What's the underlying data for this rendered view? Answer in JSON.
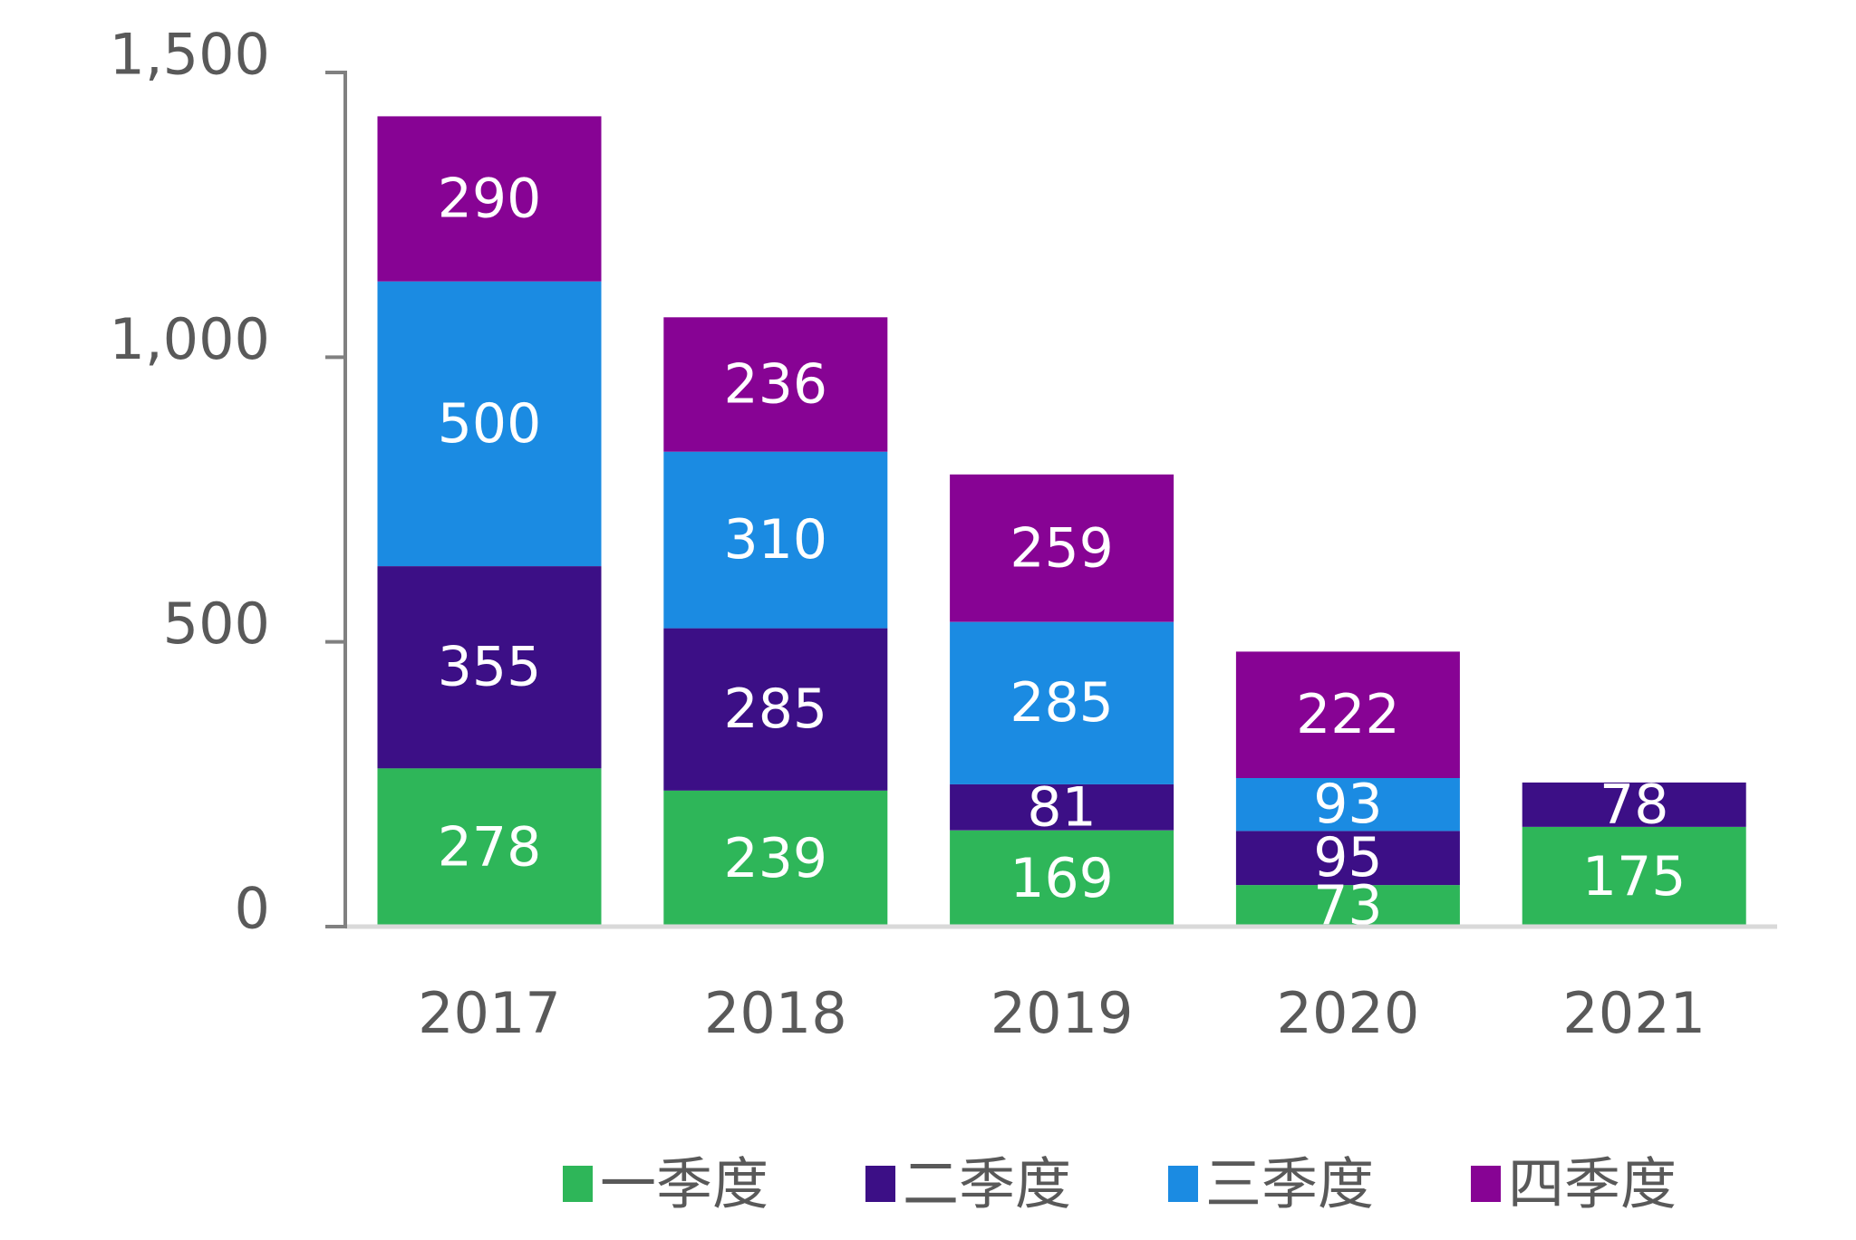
{
  "chart_data": {
    "type": "bar",
    "stacked": true,
    "title": "",
    "xlabel": "",
    "ylabel": "",
    "categories": [
      "2017",
      "2018",
      "2019",
      "2020",
      "2021"
    ],
    "series": [
      {
        "name": "一季度",
        "color": "#2eb659",
        "values": [
          278,
          239,
          169,
          73,
          175
        ]
      },
      {
        "name": "二季度",
        "color": "#3c0f86",
        "values": [
          355,
          285,
          81,
          95,
          78
        ]
      },
      {
        "name": "三季度",
        "color": "#1b8be2",
        "values": [
          500,
          310,
          285,
          93,
          null
        ]
      },
      {
        "name": "四季度",
        "color": "#870394",
        "values": [
          290,
          236,
          259,
          222,
          null
        ]
      }
    ],
    "ylim": [
      0,
      1500
    ],
    "yticks": [
      0,
      500,
      1000,
      1500
    ],
    "ytick_labels": [
      "0",
      "500",
      "1,000",
      "1,500"
    ],
    "grid": false,
    "legend_position": "bottom",
    "data_labels": true,
    "axis_colors": {
      "y_axis": "#808080",
      "x_axis": "#d9d9d9",
      "text": "#595959",
      "data_label": "#ffffff"
    }
  }
}
